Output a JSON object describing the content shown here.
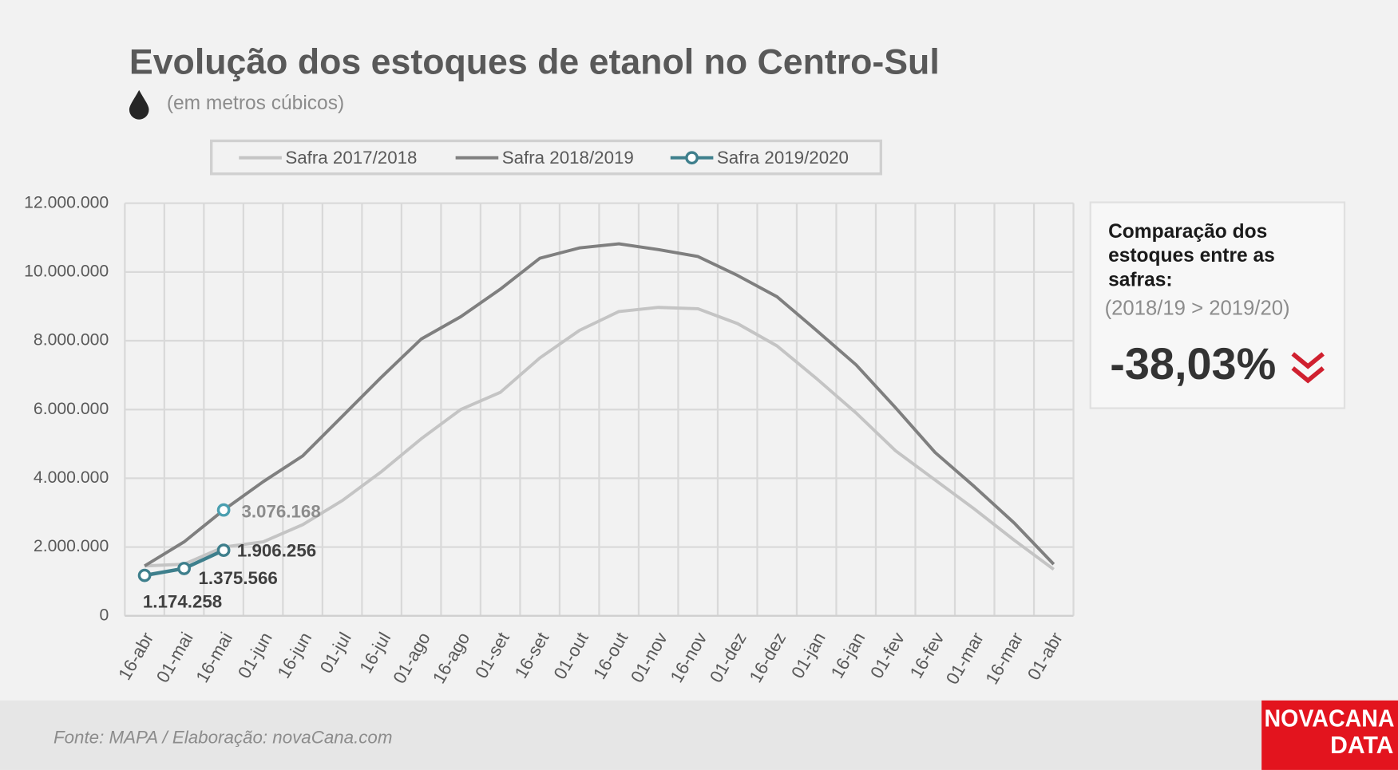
{
  "chart_data": {
    "type": "line",
    "title": "Evolução dos estoques de etanol no Centro-Sul",
    "subtitle": "(em metros cúbicos)",
    "categories": [
      "16-abr",
      "01-mai",
      "16-mai",
      "01-jun",
      "16-jun",
      "01-jul",
      "16-jul",
      "01-ago",
      "16-ago",
      "01-set",
      "16-set",
      "01-out",
      "16-out",
      "01-nov",
      "16-nov",
      "01-dez",
      "16-dez",
      "01-jan",
      "16-jan",
      "01-fev",
      "16-fev",
      "01-mar",
      "16-mar",
      "01-abr"
    ],
    "series": [
      {
        "name": "Safra 2017/2018",
        "color": "#c4c4c4",
        "values": [
          1450000,
          1500000,
          2000000,
          2150000,
          2650000,
          3350000,
          4200000,
          5150000,
          6000000,
          6500000,
          7500000,
          8300000,
          8850000,
          8970000,
          8930000,
          8500000,
          7850000,
          6900000,
          5900000,
          4800000,
          3950000,
          3100000,
          2200000,
          1350000
        ]
      },
      {
        "name": "Safra 2018/2019",
        "color": "#7f7f7f",
        "values": [
          1450000,
          2150000,
          3076168,
          3900000,
          4650000,
          5800000,
          6950000,
          8050000,
          8700000,
          9500000,
          10400000,
          10700000,
          10820000,
          10650000,
          10450000,
          9900000,
          9280000,
          8300000,
          7300000,
          6050000,
          4750000,
          3750000,
          2700000,
          1500000
        ],
        "value_labels": [
          null,
          null,
          "3.076.168",
          null,
          null,
          null,
          null,
          null,
          null,
          null,
          null,
          null,
          null,
          null,
          null,
          null,
          null,
          null,
          null,
          null,
          null,
          null,
          null,
          null
        ]
      },
      {
        "name": "Safra 2019/2020",
        "color": "#3e7f8c",
        "values": [
          1174258,
          1375566,
          1906256,
          null,
          null,
          null,
          null,
          null,
          null,
          null,
          null,
          null,
          null,
          null,
          null,
          null,
          null,
          null,
          null,
          null,
          null,
          null,
          null,
          null
        ],
        "value_labels": [
          "1.174.258",
          "1.375.566",
          "1.906.256",
          null,
          null,
          null,
          null,
          null,
          null,
          null,
          null,
          null,
          null,
          null,
          null,
          null,
          null,
          null,
          null,
          null,
          null,
          null,
          null,
          null
        ]
      }
    ],
    "ylim": [
      0,
      12000000
    ],
    "yticks": [
      0,
      {
        "value": 2000000,
        "label": "2.000.000"
      },
      {
        "value": 4000000,
        "label": "4.000.000"
      },
      {
        "value": 6000000,
        "label": "6.000.000"
      },
      {
        "value": 8000000,
        "label": "8.000.000"
      },
      {
        "value": 10000000,
        "label": "10.000.000"
      },
      {
        "value": 12000000,
        "label": "12.000.000"
      }
    ],
    "grid": true,
    "legend": "top"
  },
  "panel": {
    "heading": [
      "Comparação dos",
      "estoques entre as",
      "safras:"
    ],
    "comparison": "(2018/19 > 2019/20)",
    "change": "-38,03%"
  },
  "footer": {
    "source": "Fonte: MAPA  / Elaboração: novaCana.com"
  },
  "logo": [
    "NOVACANA",
    "DATA"
  ]
}
